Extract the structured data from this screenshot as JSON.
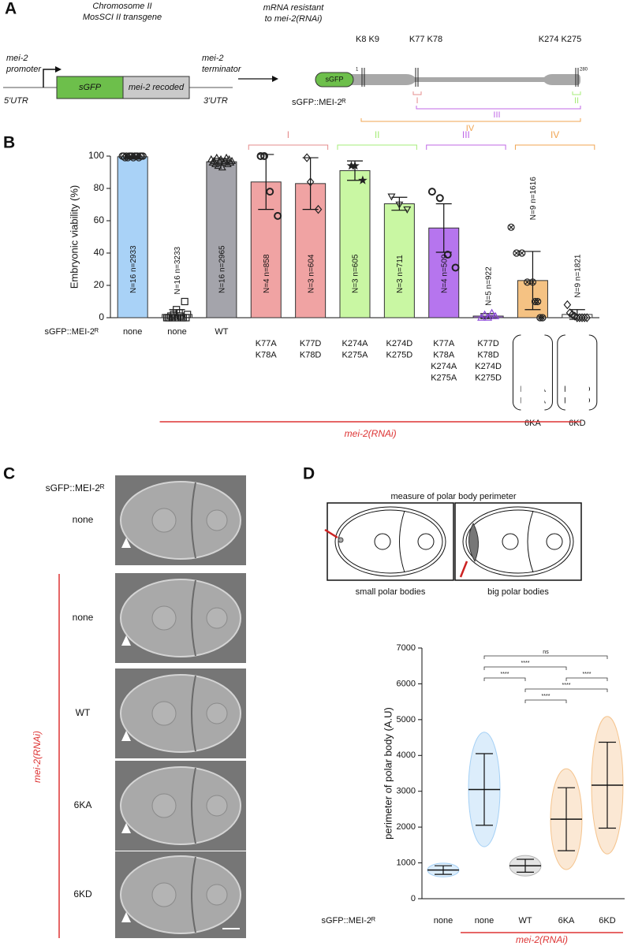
{
  "panel_labels": [
    "A",
    "B",
    "C",
    "D"
  ],
  "panel_a": {
    "chromosome": "Chromosome II",
    "transgene": "MosSCI II transgene",
    "promoter": [
      "mei-2",
      "promoter"
    ],
    "utr5": "5'UTR",
    "sgfp": "sGFP",
    "recoded": "mei-2 recoded",
    "terminator": [
      "mei-2",
      "terminator"
    ],
    "utr3": "3'UTR",
    "mrna": [
      "mRNA resistant",
      "to mei-2(RNAi)"
    ],
    "protein": "sGFP::MEI-2ᴿ",
    "protein_tag": "sGFP",
    "sites": [
      "K8 K9",
      "K77 K78",
      "K274 K275"
    ],
    "start": "1",
    "end": "280",
    "regions": [
      "I",
      "II",
      "III",
      "IV"
    ]
  },
  "chart_data": [
    {
      "type": "bar",
      "ylabel": "Embryonic viability (%)",
      "row_label": "sGFP::MEI-2ᴿ",
      "categories": [
        [
          "none"
        ],
        [
          "none"
        ],
        [
          "WT"
        ],
        [
          "K77A",
          "K78A"
        ],
        [
          "K77D",
          "K78D"
        ],
        [
          "K274A",
          "K275A"
        ],
        [
          "K274D",
          "K275D"
        ],
        [
          "K77A",
          "K78A",
          "K274A",
          "K275A"
        ],
        [
          "K77D",
          "K78D",
          "K274D",
          "K275D"
        ],
        [
          "K8A",
          "K9A",
          "K77A",
          "K78A",
          "K274A",
          "K275A"
        ],
        [
          "K8D",
          "K9D",
          "K77D",
          "K78D",
          "K274D",
          "K275D"
        ]
      ],
      "group_names": [
        null,
        null,
        null,
        null,
        null,
        null,
        null,
        null,
        null,
        "6KA",
        "6KD"
      ],
      "values": [
        99.6,
        2,
        96.5,
        84,
        83,
        91,
        70.5,
        55.5,
        1,
        23,
        2
      ],
      "errors": [
        0.5,
        3,
        2,
        17,
        16,
        6,
        4,
        15,
        1.5,
        18,
        3
      ],
      "colors": [
        "#a9d2f7",
        "#ffffff",
        "#a4a4ab",
        "#f0a3a3",
        "#f0a3a3",
        "#c9f7a3",
        "#c9f7a3",
        "#b675ee",
        "#b675ee",
        "#f5c283",
        "#ffffff"
      ],
      "n_labels": [
        "N=16  n=2933",
        "N=16  n=3233",
        "N=16  n=2965",
        "N=4  n=858",
        "N=3  n=604",
        "N=3  n=605",
        "N=3  n=711",
        "N=4  n=509",
        "N=5  n=922",
        "N=9  n=1616",
        "N=9  n=1821"
      ],
      "points": [
        [
          100,
          100,
          99,
          100,
          99,
          100,
          100,
          100,
          99,
          100,
          100,
          100,
          99,
          100,
          100,
          100
        ],
        [
          0,
          0,
          0,
          1,
          0,
          2,
          0,
          5,
          0,
          3,
          1,
          0,
          0,
          10,
          0,
          2
        ],
        [
          98,
          96,
          97,
          95,
          99,
          94,
          97,
          98,
          93,
          96,
          97,
          99,
          95,
          98,
          96,
          97
        ],
        [
          100,
          100,
          78,
          63
        ],
        [
          99,
          84,
          67
        ],
        [
          94,
          94,
          85
        ],
        [
          75,
          70,
          67
        ],
        [
          78,
          74,
          39,
          31
        ],
        [
          0,
          2,
          0,
          3,
          1
        ],
        [
          56,
          40,
          40,
          22,
          22,
          10,
          10,
          0,
          0
        ],
        [
          8,
          3,
          2,
          1,
          0,
          0,
          0,
          0,
          0
        ]
      ],
      "markers": [
        "circle",
        "square",
        "triangle",
        "hexagon",
        "diamond",
        "star",
        "triangle-down",
        "hexagon",
        "triangle",
        "circle-x",
        "diamond"
      ],
      "point_colors": [
        "#222222",
        "#222222",
        "#222222",
        "#222222",
        "#222222",
        "#222222",
        "#222222",
        "#222222",
        "#8a46d8",
        "#222222",
        "#222222"
      ],
      "brackets": [
        null,
        null,
        null,
        "I",
        "I",
        "II",
        "II",
        "III",
        "III",
        "IV",
        "IV"
      ],
      "bracket_colors": {
        "I": "#e58c8c",
        "II": "#a6ec78",
        "III": "#c068e6",
        "IV": "#f0a552"
      },
      "rnai": [
        false,
        true,
        true,
        true,
        true,
        true,
        true,
        true,
        true,
        true,
        true
      ],
      "rnai_label": "mei-2(RNAi)",
      "ylim": [
        0,
        100
      ],
      "yticks": [
        0,
        20,
        40,
        60,
        80,
        100
      ]
    },
    {
      "type": "strip",
      "ylabel": "perimeter of polar body (A.U)",
      "row_label": "sGFP::MEI-2ᴿ",
      "illustration": {
        "title": "measure of polar body perimeter",
        "captions": [
          "small polar bodies",
          "big polar bodies"
        ]
      },
      "categories": [
        "none",
        "none",
        "WT",
        "6KA",
        "6KD"
      ],
      "values": [
        800,
        3050,
        920,
        2220,
        3170
      ],
      "errors": [
        120,
        1000,
        180,
        880,
        1200
      ],
      "colors": [
        "#74b8f0",
        "#74b8f0",
        "#8f8f8f",
        "#f0a552",
        "#f0a552"
      ],
      "comparisons": [
        {
          "pair": [
            1,
            4
          ],
          "label": "ns"
        },
        {
          "pair": [
            1,
            3
          ],
          "label": "****"
        },
        {
          "pair": [
            1,
            2
          ],
          "label": "****"
        },
        {
          "pair": [
            3,
            4
          ],
          "label": "****"
        },
        {
          "pair": [
            2,
            4
          ],
          "label": "****"
        },
        {
          "pair": [
            2,
            3
          ],
          "label": "****"
        }
      ],
      "rnai": [
        false,
        true,
        true,
        true,
        true
      ],
      "rnai_label": "mei-2(RNAi)",
      "ylim": [
        0,
        7000
      ],
      "yticks": [
        0,
        1000,
        2000,
        3000,
        4000,
        5000,
        6000,
        7000
      ]
    }
  ],
  "panel_c": {
    "header": "sGFP::MEI-2ᴿ",
    "rnai": "mei-2(RNAi)",
    "rows": [
      "none",
      "none",
      "WT",
      "6KA",
      "6KD"
    ]
  }
}
